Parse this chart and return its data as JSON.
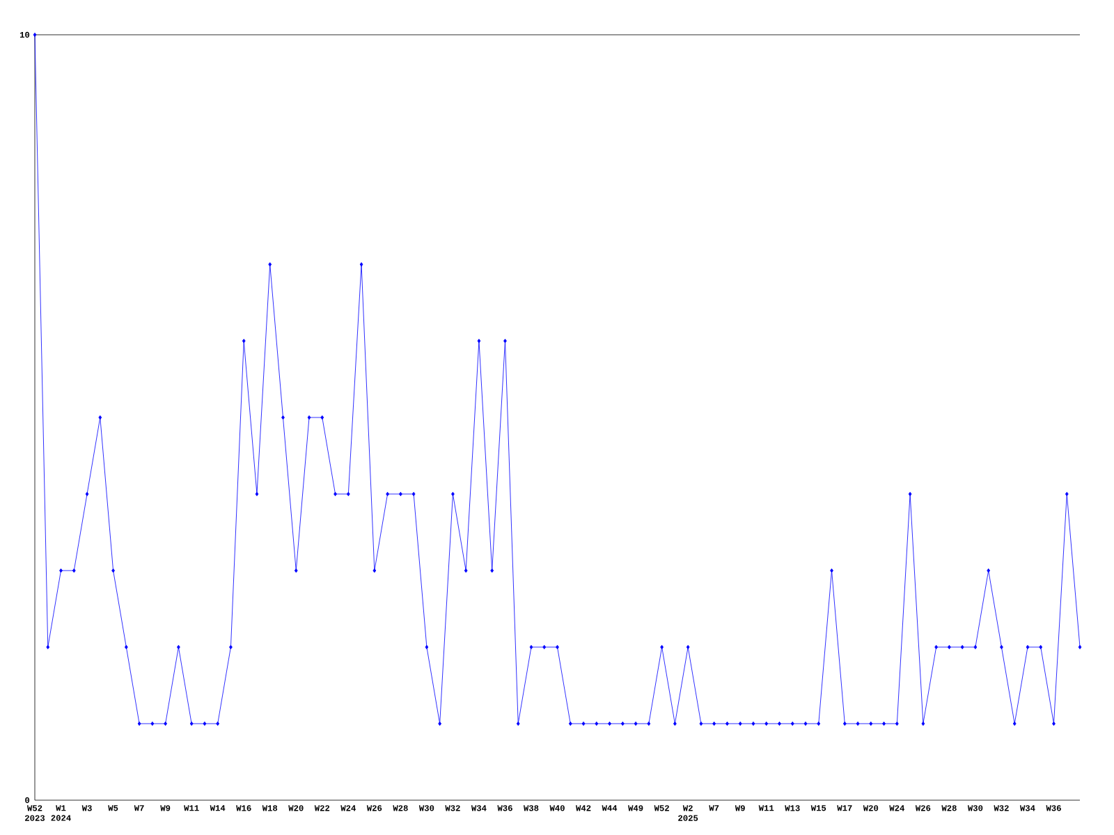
{
  "chart_data": {
    "type": "line",
    "categories": [
      "W52 2023",
      null,
      "W1 2024",
      null,
      "W3",
      null,
      "W5",
      null,
      "W7",
      null,
      "W9",
      null,
      "W11",
      null,
      "W14",
      null,
      "W16",
      null,
      "W18",
      null,
      "W20",
      null,
      "W22",
      null,
      "W24",
      null,
      "W26",
      null,
      "W28",
      null,
      "W30",
      null,
      "W32",
      null,
      "W34",
      null,
      "W36",
      null,
      "W38",
      null,
      "W40",
      null,
      "W42",
      null,
      "W44",
      null,
      "W49",
      null,
      "W52",
      null,
      "W2 2025",
      null,
      "W7",
      null,
      "W9",
      null,
      "W11",
      null,
      "W13",
      null,
      "W15",
      null,
      "W17",
      null,
      "W20",
      null,
      "W24",
      null,
      "W26",
      null,
      "W28",
      null,
      "W30",
      null,
      "W32",
      null,
      "W34",
      null,
      "W36",
      null,
      null
    ],
    "values": [
      10,
      2,
      3,
      3,
      4,
      5,
      3,
      2,
      1,
      1,
      1,
      2,
      1,
      1,
      1,
      2,
      6,
      4,
      7,
      5,
      3,
      5,
      5,
      4,
      4,
      7,
      3,
      4,
      4,
      4,
      2,
      1,
      4,
      3,
      6,
      3,
      6,
      1,
      2,
      2,
      2,
      1,
      1,
      1,
      1,
      1,
      1,
      1,
      2,
      1,
      2,
      1,
      1,
      1,
      1,
      1,
      1,
      1,
      1,
      1,
      1,
      3,
      1,
      1,
      1,
      1,
      1,
      4,
      1,
      2,
      2,
      2,
      2,
      3,
      2,
      1,
      2,
      2,
      1,
      4,
      2
    ],
    "color": "#0000ff",
    "marker": "diamond",
    "line_style": "solid",
    "grid": false,
    "ylim": [
      0,
      10
    ],
    "yticks": [
      0,
      10
    ]
  }
}
